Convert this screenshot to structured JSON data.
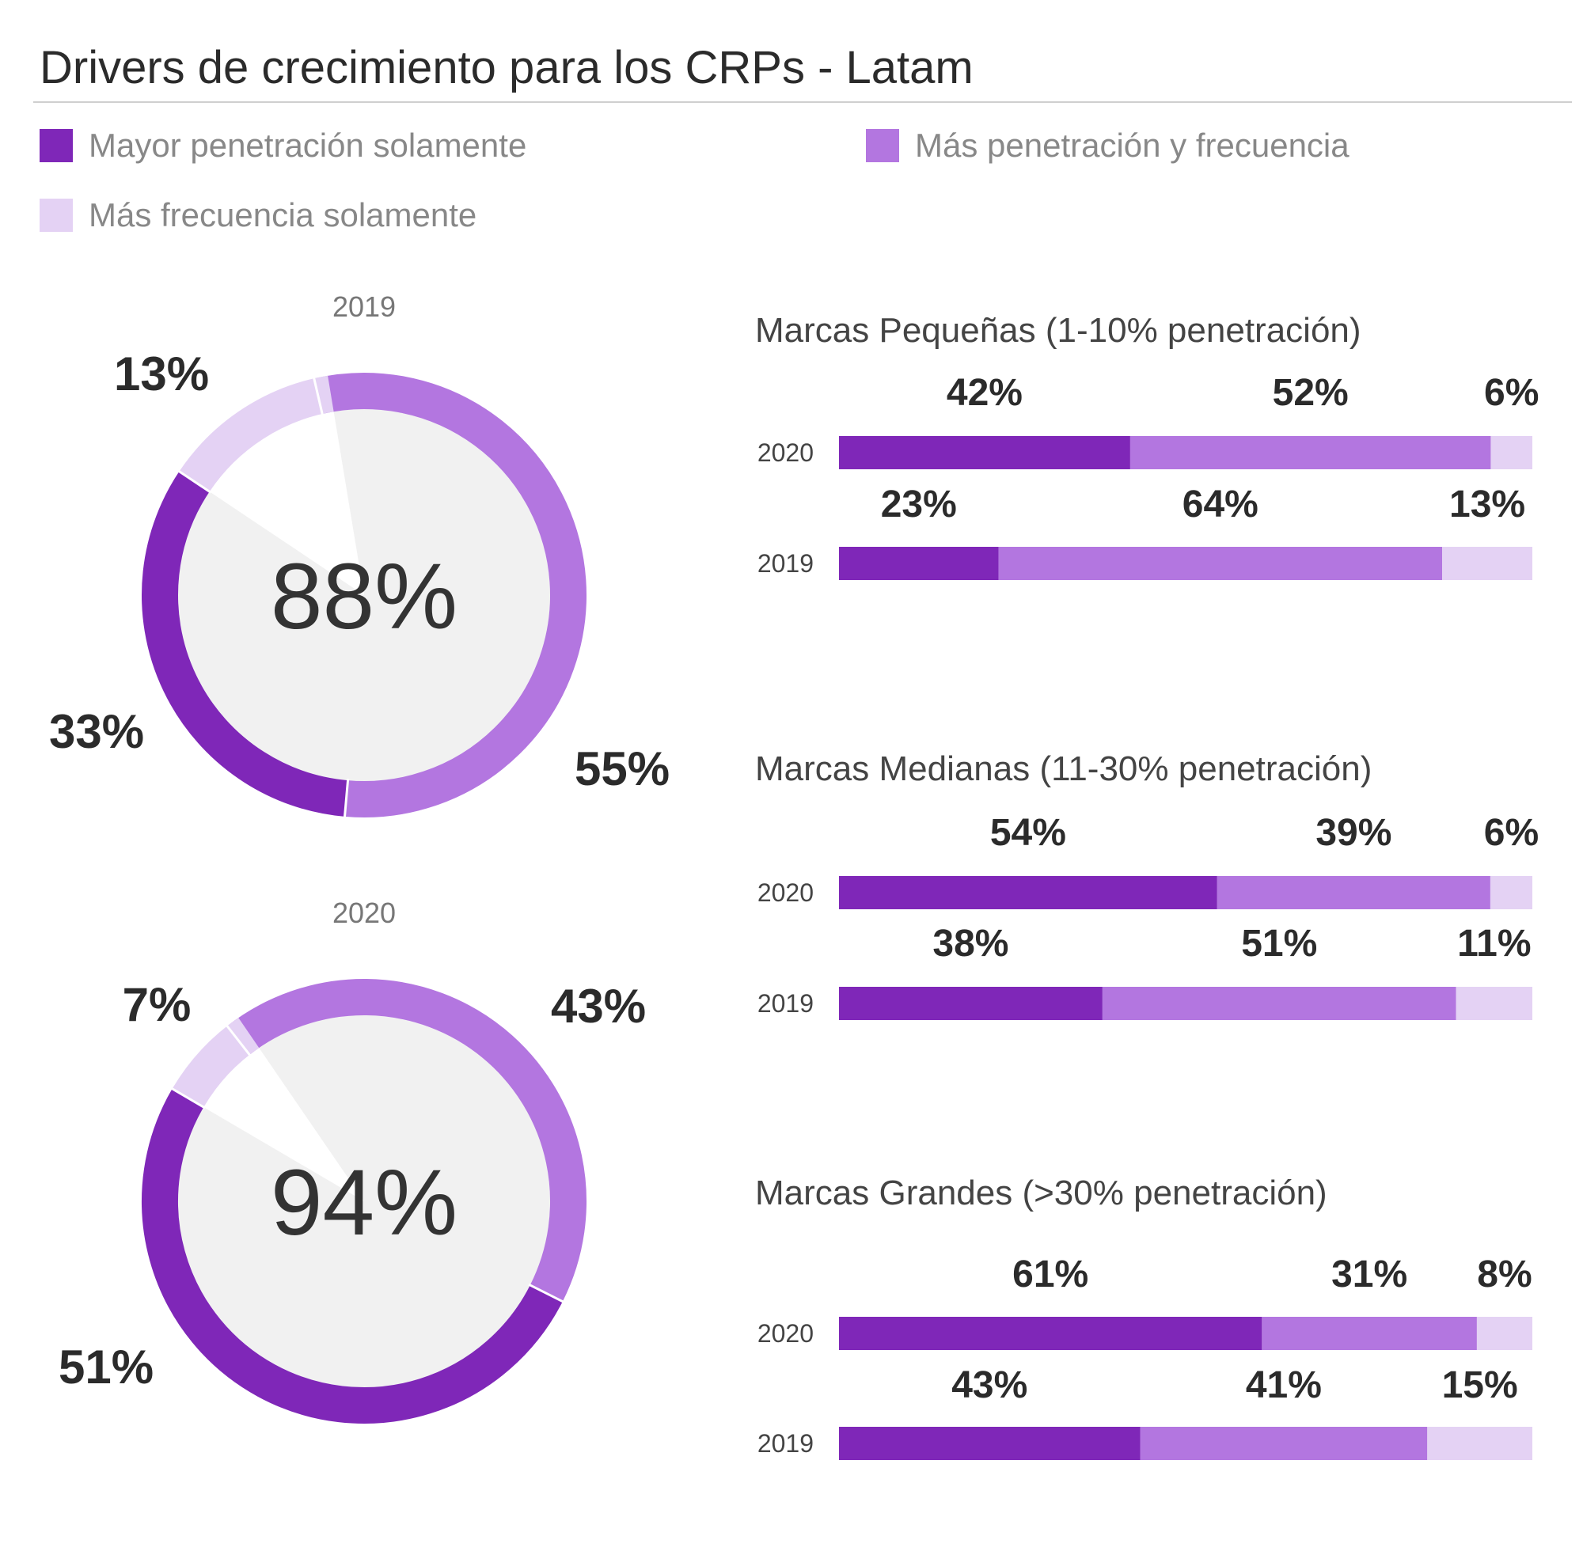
{
  "header": {
    "title": "Drivers de crecimiento para los CRPs - Latam"
  },
  "legend": {
    "items": [
      {
        "label": "Mayor penetración solamente",
        "color": "#7f27b8"
      },
      {
        "label": "Más penetración y frecuencia",
        "color": "#b376e0"
      },
      {
        "label": "Más frecuencia solamente",
        "color": "#e4d2f4"
      }
    ]
  },
  "chart_data": [
    {
      "type": "pie",
      "variant": "donut",
      "title": "2019",
      "center_label": "88%",
      "slices": [
        {
          "label": "Mayor penetración solamente",
          "value": 33,
          "display": "33%",
          "color": "#7f27b8"
        },
        {
          "label": "Más penetración y frecuencia",
          "value": 55,
          "display": "55%",
          "color": "#b376e0"
        },
        {
          "label": "Más frecuencia solamente",
          "value": 13,
          "display": "13%",
          "color": "#e4d2f4"
        }
      ]
    },
    {
      "type": "pie",
      "variant": "donut",
      "title": "2020",
      "center_label": "94%",
      "slices": [
        {
          "label": "Mayor penetración solamente",
          "value": 51,
          "display": "51%",
          "color": "#7f27b8"
        },
        {
          "label": "Más penetración y frecuencia",
          "value": 43,
          "display": "43%",
          "color": "#b376e0"
        },
        {
          "label": "Más frecuencia solamente",
          "value": 7,
          "display": "7%",
          "color": "#e4d2f4"
        }
      ]
    },
    {
      "type": "bar",
      "orientation": "horizontal",
      "stacked": true,
      "title": "Marcas Pequeñas (1-10% penetración)",
      "categories": [
        "2020",
        "2019"
      ],
      "series": [
        {
          "name": "Mayor penetración solamente",
          "values": [
            42,
            23
          ],
          "labels": [
            "42%",
            "23%"
          ]
        },
        {
          "name": "Más penetración y frecuencia",
          "values": [
            52,
            64
          ],
          "labels": [
            "52%",
            "64%"
          ]
        },
        {
          "name": "Más frecuencia solamente",
          "values": [
            6,
            13
          ],
          "labels": [
            "6%",
            "13%"
          ]
        }
      ]
    },
    {
      "type": "bar",
      "orientation": "horizontal",
      "stacked": true,
      "title": "Marcas Medianas (11-30% penetración)",
      "categories": [
        "2020",
        "2019"
      ],
      "series": [
        {
          "name": "Mayor penetración solamente",
          "values": [
            54,
            38
          ],
          "labels": [
            "54%",
            "38%"
          ]
        },
        {
          "name": "Más penetración y frecuencia",
          "values": [
            39,
            51
          ],
          "labels": [
            "39%",
            "51%"
          ]
        },
        {
          "name": "Más frecuencia solamente",
          "values": [
            6,
            11
          ],
          "labels": [
            "6%",
            "11%"
          ]
        }
      ]
    },
    {
      "type": "bar",
      "orientation": "horizontal",
      "stacked": true,
      "title": "Marcas Grandes (>30% penetración)",
      "categories": [
        "2020",
        "2019"
      ],
      "series": [
        {
          "name": "Mayor penetración solamente",
          "values": [
            61,
            43
          ],
          "labels": [
            "61%",
            "43%"
          ]
        },
        {
          "name": "Más penetración y frecuencia",
          "values": [
            31,
            41
          ],
          "labels": [
            "31%",
            "41%"
          ]
        },
        {
          "name": "Más frecuencia solamente",
          "values": [
            8,
            15
          ],
          "labels": [
            "8%",
            "15%"
          ]
        }
      ]
    }
  ]
}
